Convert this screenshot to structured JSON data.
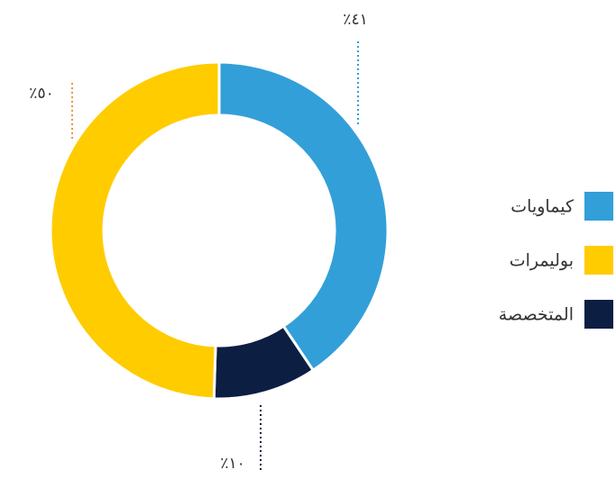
{
  "chart_data": {
    "type": "donut",
    "categories": [
      "كيماويات",
      "المتخصصة",
      "بوليمرات"
    ],
    "values": [
      41,
      10,
      50
    ],
    "value_labels": [
      "٪٤١",
      "٪١٠",
      "٪٥٠"
    ],
    "colors": [
      "#339fd8",
      "#0c1e42",
      "#ffcc00"
    ],
    "legend": "right"
  }
}
